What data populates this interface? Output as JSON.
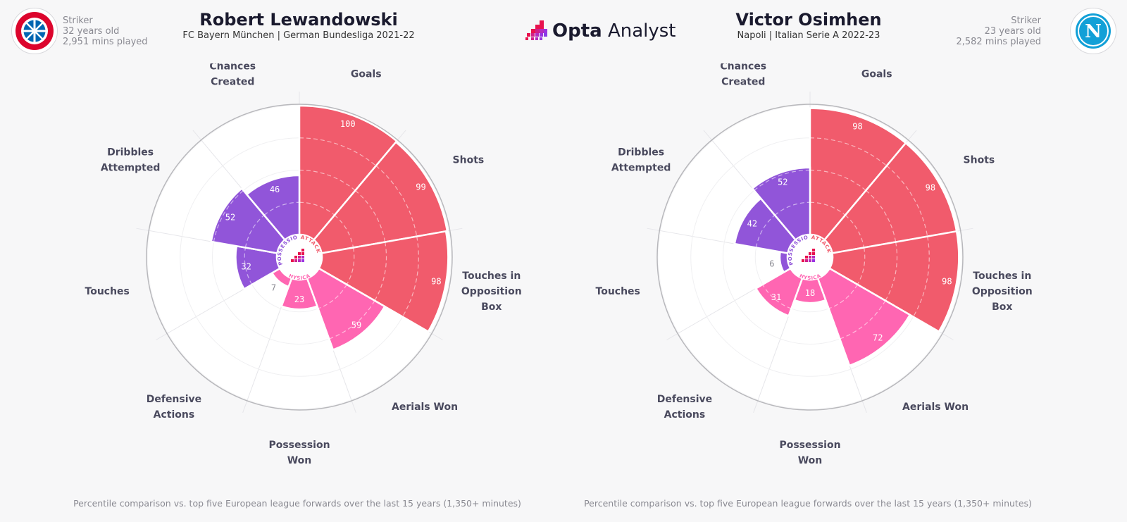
{
  "brand": {
    "bold": "Opta",
    "regular": "Analyst"
  },
  "categories": {
    "attacking": "ATTACKING",
    "possession": "POSSESSION",
    "physical": "PHYSICAL"
  },
  "colors": {
    "attacking": "#f15b6c",
    "physical": "#ff66b2",
    "possession": "#9155d9",
    "grid": "#e6e6ea",
    "ring": "#b8b8bc"
  },
  "chart_data": [
    {
      "type": "radar-bar",
      "player": "Robert Lewandowski",
      "subtitle": "FC Bayern München | German Bundesliga 2021-22",
      "position": "Striker",
      "age": "32 years old",
      "minutes": "2,951 mins played",
      "footnote": "Percentile comparison vs. top five European league forwards over the last 15 years (1,350+ minutes)",
      "categories": [
        "Goals",
        "Shots",
        "Touches in Opposition Box",
        "Aerials Won",
        "Possession Won",
        "Defensive Actions",
        "Touches",
        "Dribbles Attempted",
        "Chances Created"
      ],
      "values": [
        100,
        99,
        98,
        59,
        23,
        7,
        32,
        52,
        46
      ],
      "groups": [
        "attacking",
        "attacking",
        "attacking",
        "physical",
        "physical",
        "physical",
        "possession",
        "possession",
        "possession"
      ],
      "ylim": [
        0,
        100
      ]
    },
    {
      "type": "radar-bar",
      "player": "Victor Osimhen",
      "subtitle": "Napoli | Italian Serie A 2022-23",
      "position": "Striker",
      "age": "23 years old",
      "minutes": "2,582 mins played",
      "footnote": "Percentile comparison vs. top five European league forwards over the last 15 years (1,350+ minutes)",
      "categories": [
        "Goals",
        "Shots",
        "Touches in Opposition Box",
        "Aerials Won",
        "Possession Won",
        "Defensive Actions",
        "Touches",
        "Dribbles Attempted",
        "Chances Created"
      ],
      "values": [
        98,
        98,
        98,
        72,
        18,
        31,
        6,
        42,
        52
      ],
      "groups": [
        "attacking",
        "attacking",
        "attacking",
        "physical",
        "physical",
        "physical",
        "possession",
        "possession",
        "possession"
      ],
      "ylim": [
        0,
        100
      ]
    }
  ],
  "badges": {
    "left": "FC BAYERN MÜNCHEN",
    "right": "N"
  }
}
